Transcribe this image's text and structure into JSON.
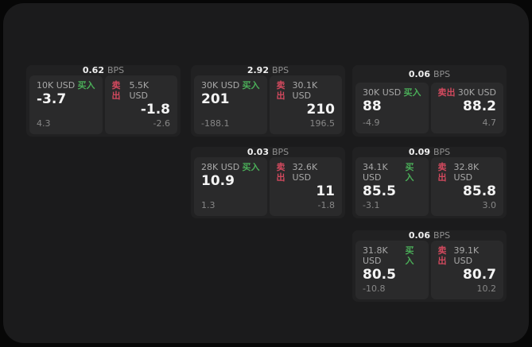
{
  "colors": {
    "page_bg": "#070707",
    "panel_bg": "#1b1b1c",
    "card_bg": "#212122",
    "tile_bg": "#2a2a2b",
    "buy": "#4aad58",
    "sell": "#d2495e",
    "value_text": "#f4f4f4",
    "muted_text": "#8f8f8f"
  },
  "labels": {
    "bps_unit": "BPS",
    "buy": "买入",
    "sell": "卖出"
  },
  "cards": [
    {
      "id": "quote-card-1",
      "col": 0,
      "row": 0,
      "bps": "0.62",
      "buy": {
        "amount": "10K USD",
        "value": "-3.7",
        "delta": "4.3"
      },
      "sell": {
        "amount": "5.5K USD",
        "value": "-1.8",
        "delta": "-2.6"
      }
    },
    {
      "id": "quote-card-2",
      "col": 1,
      "row": 0,
      "bps": "2.92",
      "buy": {
        "amount": "30K USD",
        "value": "201",
        "delta": "-188.1"
      },
      "sell": {
        "amount": "30.1K USD",
        "value": "210",
        "delta": "196.5"
      }
    },
    {
      "id": "quote-card-3",
      "col": 2,
      "row": 0,
      "bps": "0.06",
      "buy": {
        "amount": "30K USD",
        "value": "88",
        "delta": "-4.9"
      },
      "sell": {
        "amount": "30K USD",
        "value": "88.2",
        "delta": "4.7"
      }
    },
    {
      "id": "quote-card-4",
      "col": 1,
      "row": 1,
      "bps": "0.03",
      "buy": {
        "amount": "28K USD",
        "value": "10.9",
        "delta": "1.3"
      },
      "sell": {
        "amount": "32.6K USD",
        "value": "11",
        "delta": "-1.8"
      }
    },
    {
      "id": "quote-card-5",
      "col": 2,
      "row": 1,
      "bps": "0.09",
      "buy": {
        "amount": "34.1K USD",
        "value": "85.5",
        "delta": "-3.1"
      },
      "sell": {
        "amount": "32.8K USD",
        "value": "85.8",
        "delta": "3.0"
      }
    },
    {
      "id": "quote-card-6",
      "col": 2,
      "row": 2,
      "bps": "0.06",
      "buy": {
        "amount": "31.8K USD",
        "value": "80.5",
        "delta": "-10.8"
      },
      "sell": {
        "amount": "39.1K USD",
        "value": "80.7",
        "delta": "10.2"
      }
    }
  ]
}
